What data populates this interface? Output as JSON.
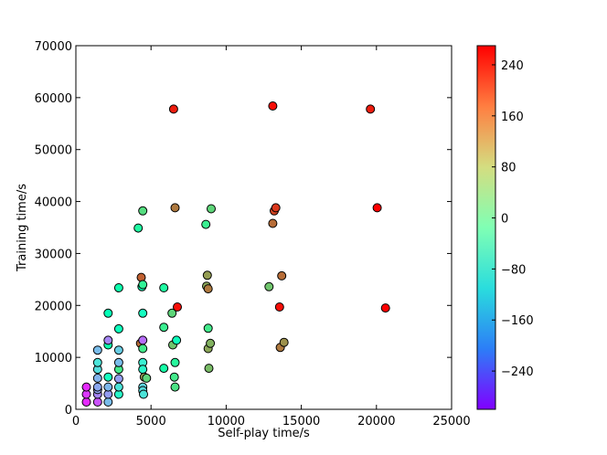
{
  "chart_data": {
    "type": "scatter",
    "title": "",
    "xlabel": "Self-play time/s",
    "ylabel": "Training time/s",
    "xlim": [
      0,
      25000
    ],
    "ylim": [
      0,
      70000
    ],
    "xticks": [
      0,
      5000,
      10000,
      15000,
      20000,
      25000
    ],
    "yticks": [
      0,
      10000,
      20000,
      30000,
      40000,
      50000,
      60000,
      70000
    ],
    "grid": false,
    "colorbar": {
      "colormap": "rainbow",
      "range": [
        -300,
        270
      ],
      "ticks": [
        -240,
        -160,
        -80,
        0,
        80,
        160,
        240
      ],
      "tick_labels": [
        "−240",
        "−160",
        "−80",
        "0",
        "80",
        "160",
        "240"
      ]
    },
    "points": [
      {
        "x": 700,
        "y": 1400,
        "c": -270
      },
      {
        "x": 700,
        "y": 2900,
        "c": -260
      },
      {
        "x": 700,
        "y": 4300,
        "c": -270
      },
      {
        "x": 1450,
        "y": 1400,
        "c": -240
      },
      {
        "x": 1450,
        "y": 2900,
        "c": -200
      },
      {
        "x": 1450,
        "y": 3800,
        "c": -175
      },
      {
        "x": 1450,
        "y": 4300,
        "c": -170
      },
      {
        "x": 1450,
        "y": 6000,
        "c": -160
      },
      {
        "x": 1450,
        "y": 7700,
        "c": -110
      },
      {
        "x": 1450,
        "y": 9000,
        "c": -100
      },
      {
        "x": 1450,
        "y": 11400,
        "c": -150
      },
      {
        "x": 2150,
        "y": 1400,
        "c": -150
      },
      {
        "x": 2150,
        "y": 2900,
        "c": -180
      },
      {
        "x": 2150,
        "y": 4300,
        "c": -155
      },
      {
        "x": 2150,
        "y": 6200,
        "c": -40
      },
      {
        "x": 2150,
        "y": 12400,
        "c": 0
      },
      {
        "x": 2150,
        "y": 13300,
        "c": -200
      },
      {
        "x": 2150,
        "y": 18500,
        "c": -20
      },
      {
        "x": 2850,
        "y": 2900,
        "c": -60
      },
      {
        "x": 2850,
        "y": 4300,
        "c": -100
      },
      {
        "x": 2850,
        "y": 5900,
        "c": -180
      },
      {
        "x": 2850,
        "y": 7700,
        "c": 60
      },
      {
        "x": 2850,
        "y": 9000,
        "c": -150
      },
      {
        "x": 2850,
        "y": 11400,
        "c": -130
      },
      {
        "x": 2850,
        "y": 15500,
        "c": -30
      },
      {
        "x": 2850,
        "y": 23400,
        "c": 0
      },
      {
        "x": 4300,
        "y": 12700,
        "c": 190
      },
      {
        "x": 4350,
        "y": 25400,
        "c": 200
      },
      {
        "x": 4400,
        "y": 23600,
        "c": -20
      },
      {
        "x": 4450,
        "y": 24000,
        "c": 40
      },
      {
        "x": 4450,
        "y": 38200,
        "c": 80
      },
      {
        "x": 4450,
        "y": 18500,
        "c": -40
      },
      {
        "x": 4450,
        "y": 13300,
        "c": -220
      },
      {
        "x": 4450,
        "y": 11700,
        "c": 60
      },
      {
        "x": 4450,
        "y": 9000,
        "c": -80
      },
      {
        "x": 4450,
        "y": 7700,
        "c": -60
      },
      {
        "x": 4450,
        "y": 4300,
        "c": -120
      },
      {
        "x": 4450,
        "y": 3600,
        "c": -110
      },
      {
        "x": 4500,
        "y": 2900,
        "c": -100
      },
      {
        "x": 4550,
        "y": 6200,
        "c": 150
      },
      {
        "x": 4700,
        "y": 6000,
        "c": 90
      },
      {
        "x": 4150,
        "y": 34900,
        "c": 20
      },
      {
        "x": 5850,
        "y": 23400,
        "c": 20
      },
      {
        "x": 5850,
        "y": 15800,
        "c": 50
      },
      {
        "x": 5850,
        "y": 7900,
        "c": 10
      },
      {
        "x": 6400,
        "y": 18500,
        "c": 90
      },
      {
        "x": 6450,
        "y": 12400,
        "c": 110
      },
      {
        "x": 6500,
        "y": 57800,
        "c": 250
      },
      {
        "x": 6550,
        "y": 6200,
        "c": 60
      },
      {
        "x": 6600,
        "y": 38800,
        "c": 180
      },
      {
        "x": 6600,
        "y": 4300,
        "c": 70
      },
      {
        "x": 6600,
        "y": 9000,
        "c": 30
      },
      {
        "x": 6700,
        "y": 13300,
        "c": -30
      },
      {
        "x": 6750,
        "y": 19700,
        "c": 260
      },
      {
        "x": 8650,
        "y": 35600,
        "c": 50
      },
      {
        "x": 8700,
        "y": 23700,
        "c": 140
      },
      {
        "x": 8750,
        "y": 25800,
        "c": 150
      },
      {
        "x": 8800,
        "y": 23200,
        "c": 180
      },
      {
        "x": 8800,
        "y": 15600,
        "c": 60
      },
      {
        "x": 8800,
        "y": 11700,
        "c": 140
      },
      {
        "x": 8850,
        "y": 7900,
        "c": 120
      },
      {
        "x": 8950,
        "y": 12700,
        "c": 130
      },
      {
        "x": 9000,
        "y": 38600,
        "c": 90
      },
      {
        "x": 12850,
        "y": 23600,
        "c": 110
      },
      {
        "x": 13100,
        "y": 58400,
        "c": 260
      },
      {
        "x": 13100,
        "y": 35800,
        "c": 190
      },
      {
        "x": 13200,
        "y": 38200,
        "c": 220
      },
      {
        "x": 13300,
        "y": 38800,
        "c": 230
      },
      {
        "x": 13550,
        "y": 19700,
        "c": 260
      },
      {
        "x": 13600,
        "y": 11900,
        "c": 180
      },
      {
        "x": 13700,
        "y": 25700,
        "c": 190
      },
      {
        "x": 13850,
        "y": 12900,
        "c": 160
      },
      {
        "x": 19600,
        "y": 57800,
        "c": 250
      },
      {
        "x": 20050,
        "y": 38800,
        "c": 270
      },
      {
        "x": 20600,
        "y": 19500,
        "c": 270
      }
    ]
  }
}
